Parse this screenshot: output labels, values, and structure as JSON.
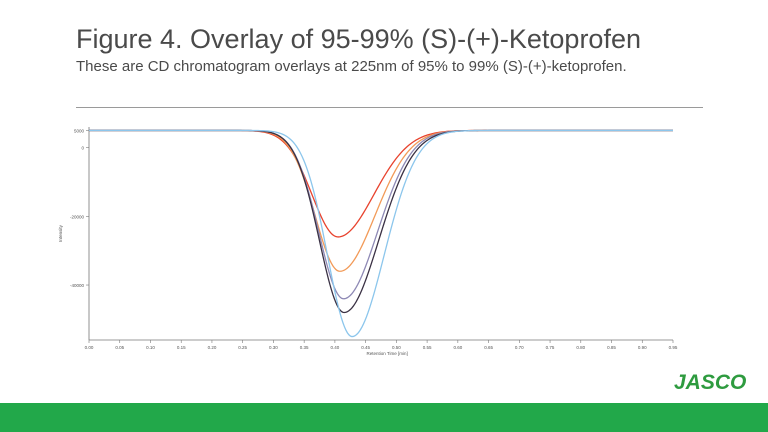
{
  "header": {
    "title": "Figure 4. Overlay of 95-99% (S)-(+)-Ketoprofen",
    "subtitle": "These are CD chromatogram overlays at 225nm of 95% to 99% (S)-(+)-ketoprofen."
  },
  "logo": {
    "text": "JASCO",
    "color": "#2e9b3f"
  },
  "footer": {
    "color": "#22a84a"
  },
  "chart_data": {
    "type": "line",
    "xlabel": "Retention Time [min]",
    "ylabel": "Intensity",
    "xlim": [
      0,
      0.95
    ],
    "ylim": [
      -56000,
      6000
    ],
    "x_ticks": [
      0.0,
      0.05,
      0.1,
      0.15,
      0.2,
      0.25,
      0.3,
      0.35,
      0.4,
      0.45,
      0.5,
      0.55,
      0.6,
      0.65,
      0.7,
      0.75,
      0.8,
      0.85,
      0.9,
      0.95
    ],
    "x_tick_labels": [
      "0.00",
      "0.05",
      "0.10",
      "0.15",
      "0.20",
      "0.25",
      "0.30",
      "0.35",
      "0.40",
      "0.45",
      "0.50",
      "0.55",
      "0.60",
      "0.65",
      "0.70",
      "0.75",
      "0.80",
      "0.85",
      "0.90",
      "0.95"
    ],
    "y_ticks": [
      5000,
      0,
      -20000,
      -40000
    ],
    "y_tick_labels": [
      "5000",
      "0",
      "-20000",
      "-40000"
    ],
    "grid": false,
    "legend": "none",
    "baseline": 5000,
    "series": [
      {
        "color": "#e8432e",
        "peak_x": 0.405,
        "peak_y": -26000,
        "sigma_left": 0.042,
        "sigma_right": 0.058
      },
      {
        "color": "#f29a58",
        "peak_x": 0.408,
        "peak_y": -36000,
        "sigma_left": 0.04,
        "sigma_right": 0.057
      },
      {
        "color": "#8e89b5",
        "peak_x": 0.414,
        "peak_y": -44000,
        "sigma_left": 0.04,
        "sigma_right": 0.055
      },
      {
        "color": "#3a3144",
        "peak_x": 0.415,
        "peak_y": -48000,
        "sigma_left": 0.04,
        "sigma_right": 0.056
      },
      {
        "color": "#8cc6ec",
        "peak_x": 0.428,
        "peak_y": -55000,
        "sigma_left": 0.04,
        "sigma_right": 0.052
      }
    ]
  }
}
